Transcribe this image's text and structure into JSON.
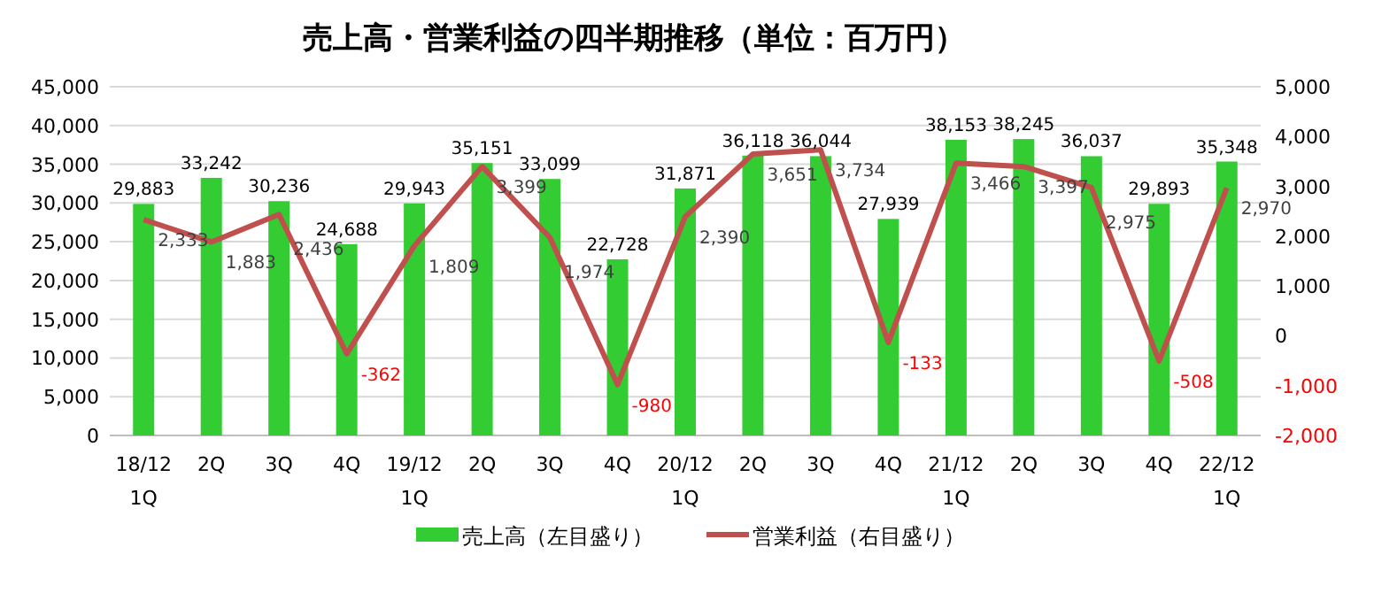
{
  "chart_data": {
    "type": "bar",
    "title": "売上高・営業利益の四半期推移（単位：百万円）",
    "categories": [
      "18/12 1Q",
      "2Q",
      "3Q",
      "4Q",
      "19/12 1Q",
      "2Q",
      "3Q",
      "4Q",
      "20/12 1Q",
      "2Q",
      "3Q",
      "4Q",
      "21/12 1Q",
      "2Q",
      "3Q",
      "4Q",
      "22/12 1Q"
    ],
    "series": [
      {
        "name": "売上高（左目盛り）",
        "color": "#33cc33",
        "values": [
          29883,
          33242,
          30236,
          24688,
          29943,
          35151,
          33099,
          22728,
          31871,
          36118,
          36044,
          27939,
          38153,
          38245,
          36037,
          29893,
          35348
        ],
        "value_labels": [
          "29,883",
          "33,242",
          "30,236",
          "24,688",
          "29,943",
          "35,151",
          "33,099",
          "22,728",
          "31,871",
          "36,118",
          "36,044",
          "27,939",
          "38,153",
          "38,245",
          "36,037",
          "29,893",
          "35,348"
        ]
      },
      {
        "name": "営業利益（右目盛り）",
        "type": "line",
        "axis": "y2",
        "color": "#c0504d",
        "values": [
          2333,
          1883,
          2436,
          -362,
          1809,
          3399,
          1974,
          -980,
          2390,
          3651,
          3734,
          -133,
          3466,
          3397,
          2975,
          -508,
          2970
        ],
        "value_labels": [
          "2,333",
          "1,883",
          "2,436",
          "-362",
          "1,809",
          "3,399",
          "1,974",
          "-980",
          "2,390",
          "3,651",
          "3,734",
          "-133",
          "3,466",
          "3,397",
          "2,975",
          "-508",
          "2,970"
        ]
      }
    ],
    "ylim": [
      0,
      45000
    ],
    "yticks": [
      0,
      {
        "value": 5000,
        "label": "5,000"
      },
      {
        "value": 10000,
        "label": "10,000"
      },
      {
        "value": 15000,
        "label": "15,000"
      },
      {
        "value": 20000,
        "label": "20,000"
      },
      {
        "value": 25000,
        "label": "25,000"
      },
      {
        "value": 30000,
        "label": "30,000"
      },
      {
        "value": 35000,
        "label": "35,000"
      },
      {
        "value": 40000,
        "label": "40,000"
      },
      {
        "value": 45000,
        "label": "45,000"
      }
    ],
    "y2lim": [
      -2000,
      5000
    ],
    "y2ticks": [
      {
        "value": -2000,
        "label": "-2,000"
      },
      {
        "value": -1000,
        "label": "-1,000"
      },
      0,
      {
        "value": 1000,
        "label": "1,000"
      },
      {
        "value": 2000,
        "label": "2,000"
      },
      {
        "value": 3000,
        "label": "3,000"
      },
      {
        "value": 4000,
        "label": "4,000"
      },
      {
        "value": 5000,
        "label": "5,000"
      }
    ],
    "grid": "y",
    "legend": "bottom",
    "marker": "none",
    "line_style": "solid"
  }
}
